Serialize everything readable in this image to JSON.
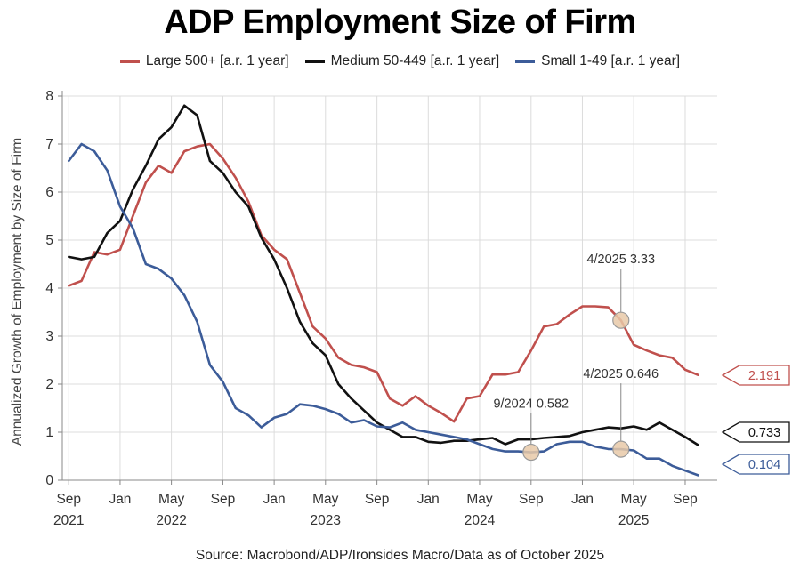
{
  "chart_data": {
    "type": "line",
    "title": "ADP Employment Size of Firm",
    "ylabel": "Annualized Growth of Employment by Size of Firm",
    "xlabel": "",
    "ylim": [
      0,
      8
    ],
    "yticks": [
      0,
      1,
      2,
      3,
      4,
      5,
      6,
      7,
      8
    ],
    "xlim": [
      2021.625,
      2025.875
    ],
    "xticks": [
      {
        "x": 2021.667,
        "month": "Sep",
        "year": "2021"
      },
      {
        "x": 2022.0,
        "month": "Jan",
        "year": ""
      },
      {
        "x": 2022.333,
        "month": "May",
        "year": "2022"
      },
      {
        "x": 2022.667,
        "month": "Sep",
        "year": ""
      },
      {
        "x": 2023.0,
        "month": "Jan",
        "year": ""
      },
      {
        "x": 2023.333,
        "month": "May",
        "year": "2023"
      },
      {
        "x": 2023.667,
        "month": "Sep",
        "year": ""
      },
      {
        "x": 2024.0,
        "month": "Jan",
        "year": ""
      },
      {
        "x": 2024.333,
        "month": "May",
        "year": "2024"
      },
      {
        "x": 2024.667,
        "month": "Sep",
        "year": ""
      },
      {
        "x": 2025.0,
        "month": "Jan",
        "year": ""
      },
      {
        "x": 2025.333,
        "month": "May",
        "year": "2025"
      },
      {
        "x": 2025.667,
        "month": "Sep",
        "year": ""
      }
    ],
    "grid": true,
    "series": [
      {
        "name": "Large 500+ [a.r. 1 year]",
        "color": "#c0504d",
        "points": [
          [
            2021.667,
            4.05
          ],
          [
            2021.75,
            4.15
          ],
          [
            2021.833,
            4.75
          ],
          [
            2021.917,
            4.7
          ],
          [
            2022.0,
            4.8
          ],
          [
            2022.083,
            5.5
          ],
          [
            2022.167,
            6.2
          ],
          [
            2022.25,
            6.55
          ],
          [
            2022.333,
            6.4
          ],
          [
            2022.417,
            6.85
          ],
          [
            2022.5,
            6.95
          ],
          [
            2022.583,
            7.0
          ],
          [
            2022.667,
            6.7
          ],
          [
            2022.75,
            6.3
          ],
          [
            2022.833,
            5.8
          ],
          [
            2022.917,
            5.1
          ],
          [
            2023.0,
            4.8
          ],
          [
            2023.083,
            4.6
          ],
          [
            2023.167,
            3.9
          ],
          [
            2023.25,
            3.2
          ],
          [
            2023.333,
            2.95
          ],
          [
            2023.417,
            2.55
          ],
          [
            2023.5,
            2.4
          ],
          [
            2023.583,
            2.35
          ],
          [
            2023.667,
            2.25
          ],
          [
            2023.75,
            1.7
          ],
          [
            2023.833,
            1.55
          ],
          [
            2023.917,
            1.75
          ],
          [
            2024.0,
            1.55
          ],
          [
            2024.083,
            1.4
          ],
          [
            2024.167,
            1.22
          ],
          [
            2024.25,
            1.7
          ],
          [
            2024.333,
            1.75
          ],
          [
            2024.417,
            2.2
          ],
          [
            2024.5,
            2.2
          ],
          [
            2024.583,
            2.25
          ],
          [
            2024.667,
            2.7
          ],
          [
            2024.75,
            3.2
          ],
          [
            2024.833,
            3.25
          ],
          [
            2024.917,
            3.45
          ],
          [
            2025.0,
            3.62
          ],
          [
            2025.083,
            3.62
          ],
          [
            2025.167,
            3.6
          ],
          [
            2025.25,
            3.33
          ],
          [
            2025.333,
            2.82
          ],
          [
            2025.417,
            2.7
          ],
          [
            2025.5,
            2.6
          ],
          [
            2025.583,
            2.55
          ],
          [
            2025.667,
            2.3
          ],
          [
            2025.75,
            2.191
          ]
        ]
      },
      {
        "name": "Medium 50-449 [a.r. 1 year]",
        "color": "#111111",
        "points": [
          [
            2021.667,
            4.65
          ],
          [
            2021.75,
            4.6
          ],
          [
            2021.833,
            4.65
          ],
          [
            2021.917,
            5.15
          ],
          [
            2022.0,
            5.4
          ],
          [
            2022.083,
            6.05
          ],
          [
            2022.167,
            6.55
          ],
          [
            2022.25,
            7.1
          ],
          [
            2022.333,
            7.35
          ],
          [
            2022.417,
            7.8
          ],
          [
            2022.5,
            7.6
          ],
          [
            2022.583,
            6.65
          ],
          [
            2022.667,
            6.4
          ],
          [
            2022.75,
            6.0
          ],
          [
            2022.833,
            5.7
          ],
          [
            2022.917,
            5.05
          ],
          [
            2023.0,
            4.6
          ],
          [
            2023.083,
            4.0
          ],
          [
            2023.167,
            3.3
          ],
          [
            2023.25,
            2.85
          ],
          [
            2023.333,
            2.6
          ],
          [
            2023.417,
            2.0
          ],
          [
            2023.5,
            1.7
          ],
          [
            2023.583,
            1.45
          ],
          [
            2023.667,
            1.2
          ],
          [
            2023.75,
            1.05
          ],
          [
            2023.833,
            0.9
          ],
          [
            2023.917,
            0.9
          ],
          [
            2024.0,
            0.8
          ],
          [
            2024.083,
            0.78
          ],
          [
            2024.167,
            0.82
          ],
          [
            2024.25,
            0.82
          ],
          [
            2024.333,
            0.85
          ],
          [
            2024.417,
            0.88
          ],
          [
            2024.5,
            0.75
          ],
          [
            2024.583,
            0.85
          ],
          [
            2024.667,
            0.85
          ],
          [
            2024.75,
            0.88
          ],
          [
            2024.833,
            0.9
          ],
          [
            2024.917,
            0.92
          ],
          [
            2025.0,
            1.0
          ],
          [
            2025.083,
            1.05
          ],
          [
            2025.167,
            1.1
          ],
          [
            2025.25,
            1.08
          ],
          [
            2025.333,
            1.12
          ],
          [
            2025.417,
            1.05
          ],
          [
            2025.5,
            1.2
          ],
          [
            2025.583,
            1.05
          ],
          [
            2025.667,
            0.9
          ],
          [
            2025.75,
            0.733
          ]
        ]
      },
      {
        "name": "Small 1-49 [a.r. 1 year]",
        "color": "#3c5c99",
        "points": [
          [
            2021.667,
            6.65
          ],
          [
            2021.75,
            7.0
          ],
          [
            2021.833,
            6.85
          ],
          [
            2021.917,
            6.45
          ],
          [
            2022.0,
            5.7
          ],
          [
            2022.083,
            5.25
          ],
          [
            2022.167,
            4.5
          ],
          [
            2022.25,
            4.4
          ],
          [
            2022.333,
            4.2
          ],
          [
            2022.417,
            3.85
          ],
          [
            2022.5,
            3.3
          ],
          [
            2022.583,
            2.4
          ],
          [
            2022.667,
            2.05
          ],
          [
            2022.75,
            1.5
          ],
          [
            2022.833,
            1.35
          ],
          [
            2022.917,
            1.1
          ],
          [
            2023.0,
            1.3
          ],
          [
            2023.083,
            1.38
          ],
          [
            2023.167,
            1.58
          ],
          [
            2023.25,
            1.55
          ],
          [
            2023.333,
            1.48
          ],
          [
            2023.417,
            1.38
          ],
          [
            2023.5,
            1.2
          ],
          [
            2023.583,
            1.25
          ],
          [
            2023.667,
            1.12
          ],
          [
            2023.75,
            1.1
          ],
          [
            2023.833,
            1.2
          ],
          [
            2023.917,
            1.05
          ],
          [
            2024.0,
            1.0
          ],
          [
            2024.083,
            0.95
          ],
          [
            2024.167,
            0.9
          ],
          [
            2024.25,
            0.85
          ],
          [
            2024.333,
            0.75
          ],
          [
            2024.417,
            0.65
          ],
          [
            2024.5,
            0.6
          ],
          [
            2024.583,
            0.6
          ],
          [
            2024.667,
            0.582
          ],
          [
            2024.75,
            0.6
          ],
          [
            2024.833,
            0.75
          ],
          [
            2024.917,
            0.8
          ],
          [
            2025.0,
            0.8
          ],
          [
            2025.083,
            0.7
          ],
          [
            2025.167,
            0.65
          ],
          [
            2025.25,
            0.646
          ],
          [
            2025.333,
            0.62
          ],
          [
            2025.417,
            0.45
          ],
          [
            2025.5,
            0.45
          ],
          [
            2025.583,
            0.3
          ],
          [
            2025.667,
            0.2
          ],
          [
            2025.75,
            0.104
          ]
        ]
      }
    ],
    "annotations": [
      {
        "text": "4/2025 3.33",
        "x": 2025.25,
        "y": 3.33,
        "color": "#c0504d"
      },
      {
        "text": "4/2025 0.646",
        "x": 2025.25,
        "y": 0.646,
        "color": "#3c5c99"
      },
      {
        "text": "9/2024 0.582",
        "x": 2024.667,
        "y": 0.582,
        "color": "#3c5c99"
      }
    ],
    "end_labels": [
      {
        "text": "2.191",
        "value": 2.191,
        "color": "#c0504d"
      },
      {
        "text": "0.733",
        "value": 0.733,
        "color": "#111111"
      },
      {
        "text": "0.104",
        "value": 0.104,
        "color": "#3c5c99"
      }
    ],
    "source": "Source: Macrobond/ADP/Ironsides Macro/Data as of October 2025"
  }
}
